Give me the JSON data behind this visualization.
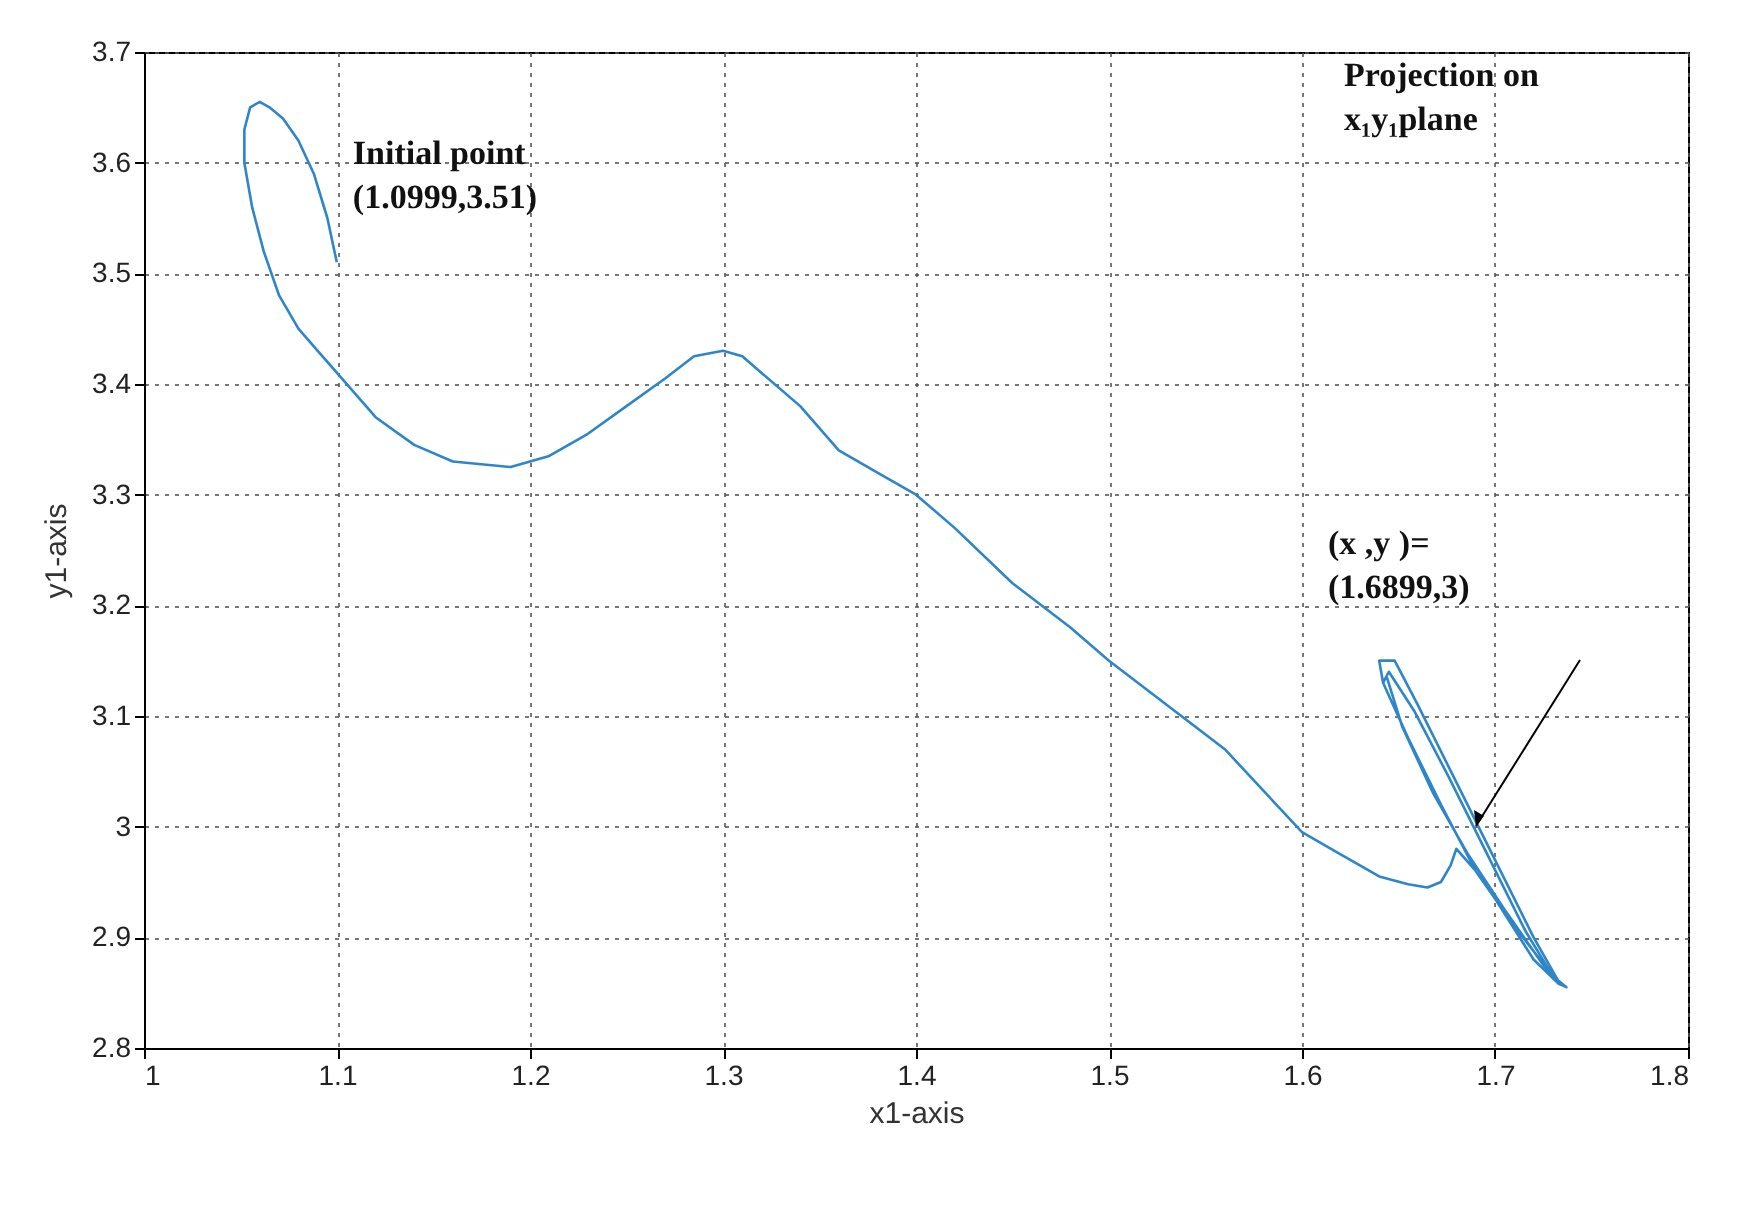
{
  "chart_data": {
    "type": "line",
    "xlabel": "x1-axis",
    "ylabel": "y1-axis",
    "xlim": [
      1,
      1.8
    ],
    "xticks": [
      1,
      1.1,
      1.2,
      1.3,
      1.4,
      1.5,
      1.6,
      1.7,
      1.8
    ],
    "ylim": [
      2.8,
      3.7
    ],
    "yticks": [
      2.8,
      2.9,
      3,
      3.1,
      3.2,
      3.3,
      3.4,
      3.5,
      3.6,
      3.7
    ],
    "grid": true,
    "line_style": "solid",
    "marker": "none",
    "series": [
      {
        "color": "#2e86c9",
        "x": [
          1.0999,
          1.095,
          1.088,
          1.08,
          1.072,
          1.065,
          1.06,
          1.055,
          1.052,
          1.052,
          1.056,
          1.062,
          1.07,
          1.08,
          1.09,
          1.1,
          1.12,
          1.14,
          1.16,
          1.19,
          1.21,
          1.23,
          1.25,
          1.27,
          1.285,
          1.3,
          1.31,
          1.32,
          1.34,
          1.36,
          1.38,
          1.4,
          1.42,
          1.45,
          1.48,
          1.5,
          1.53,
          1.56,
          1.6,
          1.62,
          1.64,
          1.655,
          1.665,
          1.672,
          1.677,
          1.68,
          1.69,
          1.7,
          1.72,
          1.733,
          1.737,
          1.73,
          1.71,
          1.69,
          1.672,
          1.655,
          1.642,
          1.64,
          1.648,
          1.66,
          1.68,
          1.7,
          1.72,
          1.733,
          1.737,
          1.73,
          1.71,
          1.69,
          1.672,
          1.655,
          1.642,
          1.645,
          1.658,
          1.676,
          1.696,
          1.716,
          1.73,
          1.725,
          1.705,
          1.686,
          1.668,
          1.652,
          1.644
        ],
        "values": [
          3.51,
          3.55,
          3.59,
          3.62,
          3.64,
          3.65,
          3.655,
          3.65,
          3.63,
          3.6,
          3.56,
          3.52,
          3.48,
          3.45,
          3.43,
          3.41,
          3.37,
          3.345,
          3.33,
          3.325,
          3.335,
          3.355,
          3.38,
          3.405,
          3.425,
          3.43,
          3.425,
          3.41,
          3.38,
          3.34,
          3.32,
          3.3,
          3.27,
          3.22,
          3.18,
          3.15,
          3.11,
          3.07,
          2.995,
          2.975,
          2.955,
          2.948,
          2.945,
          2.95,
          2.965,
          2.98,
          2.96,
          2.935,
          2.88,
          2.858,
          2.855,
          2.865,
          2.91,
          2.96,
          3.02,
          3.08,
          3.13,
          3.15,
          3.15,
          3.11,
          3.04,
          2.97,
          2.9,
          2.86,
          2.855,
          2.865,
          2.91,
          2.96,
          3.02,
          3.08,
          3.13,
          3.14,
          3.105,
          3.045,
          2.975,
          2.905,
          2.865,
          2.875,
          2.925,
          2.975,
          3.03,
          3.09,
          3.135
        ]
      }
    ],
    "annotations": [
      {
        "text": "Initial point\n(1.0999,3.51)",
        "x": 1.0999,
        "y": 3.51
      },
      "Projection on\nx₁y₁plane",
      "(x ,y )=\n(1.6899,3)"
    ]
  }
}
